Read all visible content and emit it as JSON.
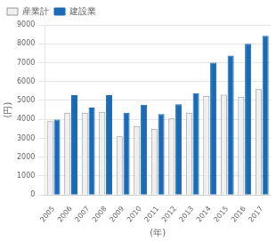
{
  "chart_data": {
    "type": "bar",
    "categories": [
      "2005",
      "2006",
      "2007",
      "2008",
      "2009",
      "2010",
      "2011",
      "2012",
      "2013",
      "2014",
      "2015",
      "2016",
      "2017"
    ],
    "series": [
      {
        "name": "産業計",
        "color": "#f0f0f0",
        "values": [
          3900,
          4350,
          4350,
          4400,
          3100,
          3650,
          3500,
          4050,
          4350,
          5250,
          5300,
          5200,
          5600
        ]
      },
      {
        "name": "建設業",
        "color": "#1a6ab5",
        "values": [
          3990,
          5280,
          4620,
          5280,
          4350,
          4770,
          4280,
          4800,
          5390,
          7000,
          7380,
          8000,
          8420
        ]
      }
    ],
    "xlabel": "(年)",
    "ylabel": "(円)",
    "ylim": [
      0,
      9000
    ],
    "yticks": [
      0,
      1000,
      2000,
      3000,
      4000,
      5000,
      6000,
      7000,
      8000,
      9000
    ],
    "grid": true,
    "legend": "upper left"
  }
}
